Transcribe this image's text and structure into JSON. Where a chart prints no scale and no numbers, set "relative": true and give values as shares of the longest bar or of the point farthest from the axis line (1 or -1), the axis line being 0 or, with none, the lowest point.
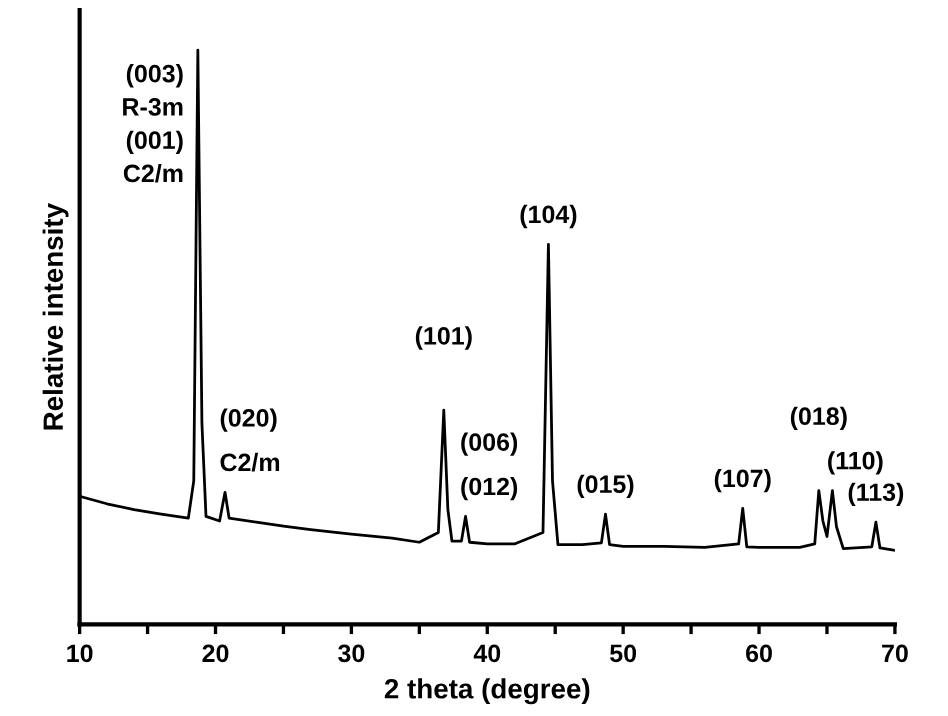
{
  "chart_data": {
    "type": "line",
    "relative": true,
    "xlabel": "2 theta (degree)",
    "ylabel": "Relative intensity",
    "xlim": [
      10,
      70
    ],
    "xticks": [
      10,
      {
        "value": 15,
        "label": null
      },
      20,
      {
        "value": 25,
        "label": null
      },
      30,
      {
        "value": 35,
        "label": null
      },
      40,
      {
        "value": 45,
        "label": null
      },
      50,
      {
        "value": 55,
        "label": null
      },
      60,
      {
        "value": 65,
        "label": null
      },
      70
    ],
    "series": [
      {
        "color": "#000000",
        "x": [
          10,
          12,
          14,
          16,
          18,
          18.4,
          18.7,
          19.0,
          19.3,
          20.3,
          20.7,
          21.0,
          23,
          25,
          27,
          30,
          33,
          35,
          36.4,
          36.8,
          37.1,
          37.4,
          38.1,
          38.4,
          38.7,
          40,
          42,
          44.1,
          44.5,
          44.8,
          45.2,
          47,
          48.4,
          48.7,
          49.0,
          50,
          53,
          56,
          58.5,
          58.8,
          59.1,
          60,
          63,
          64.1,
          64.4,
          64.7,
          65.0,
          65.4,
          65.7,
          66.2,
          68.3,
          68.6,
          68.9,
          70
        ],
        "values": [
          0.223,
          0.21,
          0.2,
          0.192,
          0.185,
          0.25,
          1.0,
          0.35,
          0.188,
          0.18,
          0.23,
          0.185,
          0.178,
          0.171,
          0.165,
          0.157,
          0.15,
          0.143,
          0.16,
          0.373,
          0.2,
          0.145,
          0.145,
          0.188,
          0.143,
          0.14,
          0.14,
          0.16,
          0.662,
          0.25,
          0.139,
          0.139,
          0.142,
          0.192,
          0.139,
          0.136,
          0.136,
          0.134,
          0.14,
          0.202,
          0.135,
          0.134,
          0.134,
          0.14,
          0.233,
          0.18,
          0.153,
          0.233,
          0.17,
          0.132,
          0.135,
          0.178,
          0.133,
          0.129
        ]
      }
    ],
    "annotations": [
      {
        "text": "(003)\nR-3m\n(001)\nC2/m",
        "x": 18.7,
        "y": 1.0
      },
      {
        "text": "(020)",
        "x": 20.7,
        "y": 0.23
      },
      {
        "text": "C2/m",
        "x": 20.7,
        "y": 0.23
      },
      {
        "text": "(101)",
        "x": 36.8,
        "y": 0.373
      },
      {
        "text": "(006)",
        "x": 38.4,
        "y": 0.188
      },
      {
        "text": "(012)",
        "x": 38.4,
        "y": 0.188
      },
      {
        "text": "(104)",
        "x": 44.5,
        "y": 0.662
      },
      {
        "text": "(015)",
        "x": 48.7,
        "y": 0.192
      },
      {
        "text": "(107)",
        "x": 58.8,
        "y": 0.202
      },
      {
        "text": "(018)",
        "x": 64.4,
        "y": 0.233
      },
      {
        "text": "(110)",
        "x": 65.4,
        "y": 0.233
      },
      {
        "text": "(113)",
        "x": 68.6,
        "y": 0.178
      }
    ]
  }
}
